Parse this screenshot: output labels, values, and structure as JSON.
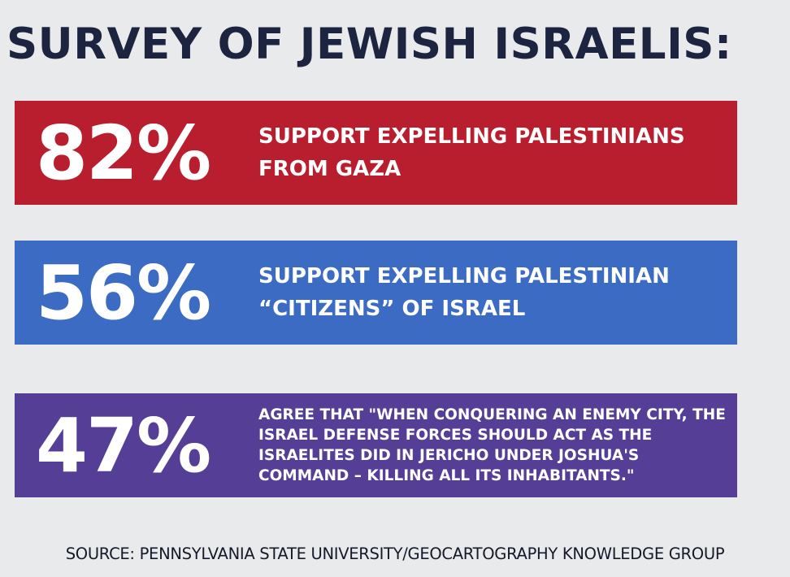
{
  "title": "SURVEY OF JEWISH ISRAELIS:",
  "stats": [
    {
      "percent": "82%",
      "text": "SUPPORT EXPELLING PALESTINIANS FROM GAZA",
      "color": "#b81e2e"
    },
    {
      "percent": "56%",
      "text": "SUPPORT EXPELLING PALESTINIAN “CITIZENS” OF ISRAEL",
      "color": "#3b6bc3"
    },
    {
      "percent": "47%",
      "text": "AGREE THAT \"WHEN CONQUERING AN ENEMY CITY, THE ISRAEL DEFENSE FORCES SHOULD ACT AS THE ISRAELITES DID IN JERICHO UNDER JOSHUA'S COMMAND – KILLING ALL ITS INHABITANTS.\"",
      "color": "#553f96"
    }
  ],
  "source": "SOURCE: PENNSYLVANIA STATE UNIVERSITY/GEOCARTOGRAPHY KNOWLEDGE GROUP"
}
